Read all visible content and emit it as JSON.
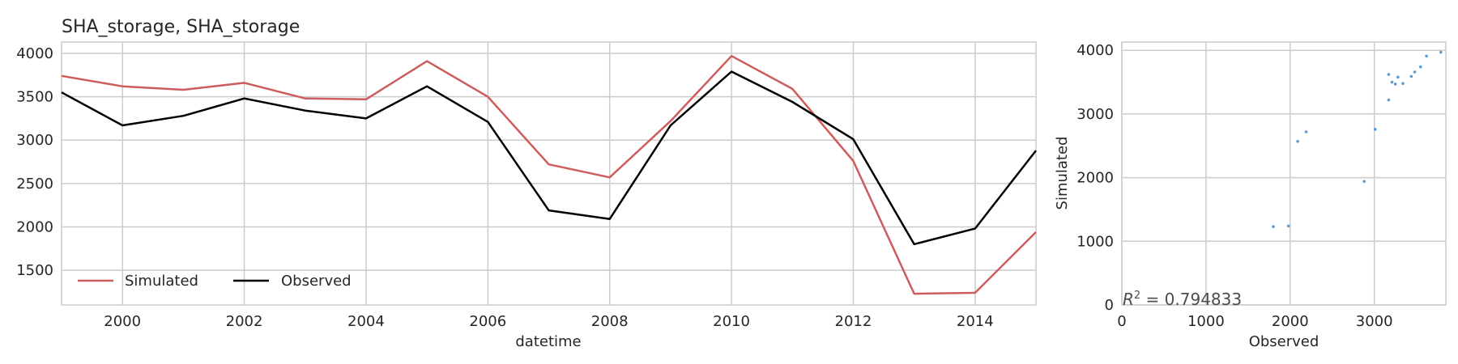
{
  "chart_data": [
    {
      "type": "line",
      "title": "SHA_storage, SHA_storage",
      "xlabel": "datetime",
      "ylabel": "",
      "xlim": [
        1999,
        2015
      ],
      "ylim": [
        1100,
        4130
      ],
      "x_ticks": [
        "2000",
        "2002",
        "2004",
        "2006",
        "2008",
        "2010",
        "2012",
        "2014"
      ],
      "x_tick_values": [
        2000,
        2002,
        2004,
        2006,
        2008,
        2010,
        2012,
        2014
      ],
      "y_ticks": [
        "1500",
        "2000",
        "2500",
        "3000",
        "3500",
        "4000"
      ],
      "y_tick_values": [
        1500,
        2000,
        2500,
        3000,
        3500,
        4000
      ],
      "grid": true,
      "legend_position": "lower-left",
      "x": [
        1999,
        2000,
        2001,
        2002,
        2003,
        2004,
        2005,
        2006,
        2007,
        2008,
        2009,
        2010,
        2011,
        2012,
        2013,
        2014,
        2015
      ],
      "series": [
        {
          "name": "Simulated",
          "color": "#cd5c5c",
          "values": [
            3740,
            3620,
            3580,
            3660,
            3480,
            3470,
            3910,
            3500,
            2720,
            2570,
            3220,
            3970,
            3590,
            2760,
            1230,
            1240,
            1940
          ]
        },
        {
          "name": "Observed",
          "color": "#000000",
          "values": [
            3550,
            3170,
            3280,
            3480,
            3340,
            3250,
            3620,
            3210,
            2190,
            2090,
            3170,
            3790,
            3440,
            3010,
            1800,
            1980,
            2880
          ]
        }
      ]
    },
    {
      "type": "scatter",
      "title": "",
      "xlabel": "Observed",
      "ylabel": "Simulated",
      "xlim": [
        0,
        3850
      ],
      "ylim": [
        0,
        4130
      ],
      "x_ticks": [
        "0",
        "1000",
        "2000",
        "3000"
      ],
      "x_tick_values": [
        0,
        1000,
        2000,
        3000
      ],
      "y_ticks": [
        "0",
        "1000",
        "2000",
        "3000",
        "4000"
      ],
      "y_tick_values": [
        0,
        1000,
        2000,
        3000,
        4000
      ],
      "grid": true,
      "color": "#5b9bd5",
      "annotation": "R",
      "annotation_rest": " = 0.794833",
      "points": [
        [
          3550,
          3740
        ],
        [
          3170,
          3620
        ],
        [
          3280,
          3580
        ],
        [
          3480,
          3660
        ],
        [
          3340,
          3480
        ],
        [
          3250,
          3470
        ],
        [
          3620,
          3910
        ],
        [
          3210,
          3500
        ],
        [
          2190,
          2720
        ],
        [
          2090,
          2570
        ],
        [
          3170,
          3220
        ],
        [
          3790,
          3970
        ],
        [
          3440,
          3590
        ],
        [
          3010,
          2760
        ],
        [
          1800,
          1230
        ],
        [
          1980,
          1240
        ],
        [
          2880,
          1940
        ]
      ]
    }
  ]
}
